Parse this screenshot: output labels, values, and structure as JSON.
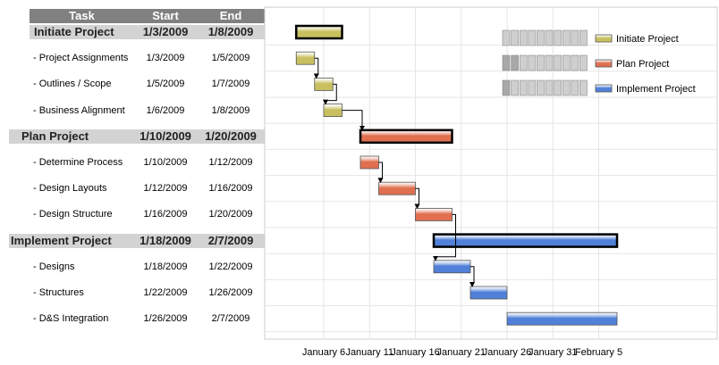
{
  "table": {
    "headers": [
      "Task",
      "Start",
      "End"
    ]
  },
  "chart_data": {
    "type": "gantt",
    "x_ticks": [
      "January 6",
      "January 11",
      "January 16",
      "January 21",
      "January 26",
      "January 31",
      "February 5"
    ],
    "x_tick_dates": [
      "2009-01-06",
      "2009-01-11",
      "2009-01-16",
      "2009-01-21",
      "2009-01-26",
      "2009-01-31",
      "2009-02-05"
    ],
    "x_range": [
      "2009-01-01",
      "2009-02-08"
    ],
    "grid": true,
    "legend_placement": "top-right",
    "series": [
      {
        "name": "Initiate Project",
        "color": "#c8c060"
      },
      {
        "name": "Plan Project",
        "color": "#e07050"
      },
      {
        "name": "Implement Project",
        "color": "#5080d8"
      }
    ],
    "rows": [
      {
        "task": "Initiate Project",
        "start_label": "1/3/2009",
        "end_label": "1/8/2009",
        "start": "2009-01-03",
        "end": "2009-01-08",
        "group": true,
        "series": 0
      },
      {
        "task": "- Project Assignments",
        "start_label": "1/3/2009",
        "end_label": "1/5/2009",
        "start": "2009-01-03",
        "end": "2009-01-05",
        "group": false,
        "series": 0
      },
      {
        "task": "- Outlines / Scope",
        "start_label": "1/5/2009",
        "end_label": "1/7/2009",
        "start": "2009-01-05",
        "end": "2009-01-07",
        "group": false,
        "series": 0
      },
      {
        "task": "- Business Alignment",
        "start_label": "1/6/2009",
        "end_label": "1/8/2009",
        "start": "2009-01-06",
        "end": "2009-01-08",
        "group": false,
        "series": 0
      },
      {
        "task": "Plan Project",
        "start_label": "1/10/2009",
        "end_label": "1/20/2009",
        "start": "2009-01-10",
        "end": "2009-01-20",
        "group": true,
        "series": 1
      },
      {
        "task": "- Determine Process",
        "start_label": "1/10/2009",
        "end_label": "1/12/2009",
        "start": "2009-01-10",
        "end": "2009-01-12",
        "group": false,
        "series": 1
      },
      {
        "task": "- Design Layouts",
        "start_label": "1/12/2009",
        "end_label": "1/16/2009",
        "start": "2009-01-12",
        "end": "2009-01-16",
        "group": false,
        "series": 1
      },
      {
        "task": "- Design Structure",
        "start_label": "1/16/2009",
        "end_label": "1/20/2009",
        "start": "2009-01-16",
        "end": "2009-01-20",
        "group": false,
        "series": 1
      },
      {
        "task": "Implement Project",
        "start_label": "1/18/2009",
        "end_label": "2/7/2009",
        "start": "2009-01-18",
        "end": "2009-02-07",
        "group": true,
        "series": 2
      },
      {
        "task": "- Designs",
        "start_label": "1/18/2009",
        "end_label": "1/22/2009",
        "start": "2009-01-18",
        "end": "2009-01-22",
        "group": false,
        "series": 2
      },
      {
        "task": "- Structures",
        "start_label": "1/22/2009",
        "end_label": "1/26/2009",
        "start": "2009-01-22",
        "end": "2009-01-26",
        "group": false,
        "series": 2
      },
      {
        "task": "- D&S Integration",
        "start_label": "1/26/2009",
        "end_label": "2/7/2009",
        "start": "2009-01-26",
        "end": "2009-02-07",
        "group": false,
        "series": 2
      }
    ],
    "dependencies": [
      [
        1,
        2
      ],
      [
        2,
        3
      ],
      [
        3,
        4
      ],
      [
        5,
        6
      ],
      [
        6,
        7
      ],
      [
        7,
        9
      ],
      [
        9,
        10
      ]
    ]
  }
}
